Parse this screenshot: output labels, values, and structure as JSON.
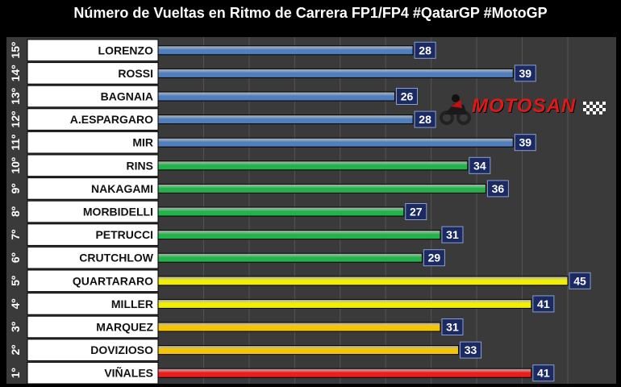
{
  "chart_data": {
    "type": "bar",
    "orientation": "horizontal",
    "title": "Número de Vueltas en Ritmo de Carrera FP1/FP4 #QatarGP #MotoGP",
    "rows": [
      {
        "position": "15º",
        "rider": "LORENZO",
        "value": 28,
        "color": "#4f7fbf"
      },
      {
        "position": "14º",
        "rider": "ROSSI",
        "value": 39,
        "color": "#4f7fbf"
      },
      {
        "position": "13º",
        "rider": "BAGNAIA",
        "value": 26,
        "color": "#4f7fbf"
      },
      {
        "position": "12º",
        "rider": "A.ESPARGARO",
        "value": 28,
        "color": "#4f7fbf"
      },
      {
        "position": "11º",
        "rider": "MIR",
        "value": 39,
        "color": "#4f7fbf"
      },
      {
        "position": "10º",
        "rider": "RINS",
        "value": 34,
        "color": "#22b34a"
      },
      {
        "position": "9º",
        "rider": "NAKAGAMI",
        "value": 36,
        "color": "#22b34a"
      },
      {
        "position": "8º",
        "rider": "MORBIDELLI",
        "value": 27,
        "color": "#22b34a"
      },
      {
        "position": "7º",
        "rider": "PETRUCCI",
        "value": 31,
        "color": "#22b34a"
      },
      {
        "position": "6º",
        "rider": "CRUTCHLOW",
        "value": 29,
        "color": "#22b34a"
      },
      {
        "position": "5º",
        "rider": "QUARTARARO",
        "value": 45,
        "color": "#f2ee00"
      },
      {
        "position": "4º",
        "rider": "MILLER",
        "value": 41,
        "color": "#f2ee00"
      },
      {
        "position": "3º",
        "rider": "MARQUEZ",
        "value": 31,
        "color": "#f7c400"
      },
      {
        "position": "2º",
        "rider": "DOVIZIOSO",
        "value": 33,
        "color": "#f7c400"
      },
      {
        "position": "1º",
        "rider": "VIÑALES",
        "value": 41,
        "color": "#ee1c1c"
      }
    ],
    "xlim": [
      0,
      45
    ],
    "grid": true,
    "data_labels": true
  },
  "logo": {
    "text": "MOTOSAN"
  },
  "colors": {
    "background": "#000000",
    "plot_background": "#3a3a3a",
    "label_cell": "#ffffff",
    "value_box": "#1b2a63",
    "grid": "#555555"
  }
}
